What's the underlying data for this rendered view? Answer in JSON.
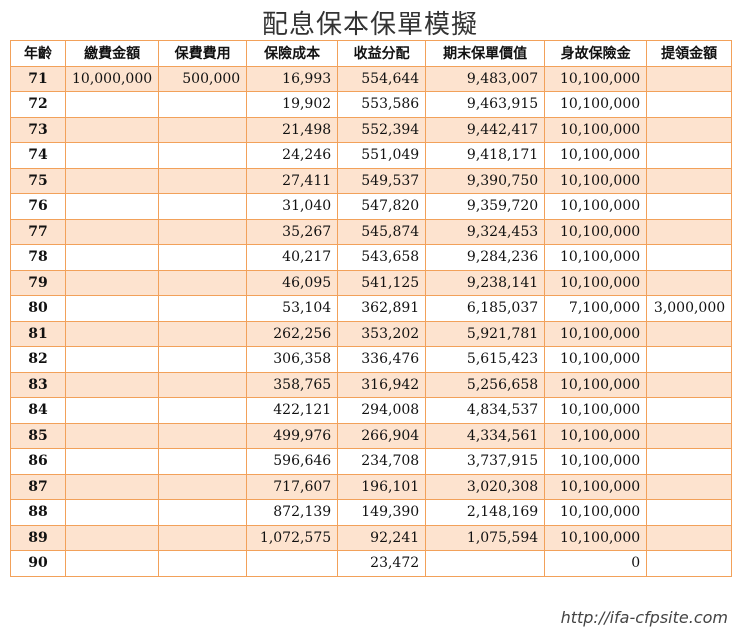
{
  "title": "配息保本保單模擬",
  "footer_url": "http://ifa-cfpsite.com",
  "table": {
    "columns": [
      "年齡",
      "繳費金額",
      "保費費用",
      "保險成本",
      "收益分配",
      "期末保單價值",
      "身故保險金",
      "提領金額"
    ],
    "rows": [
      [
        "71",
        "10,000,000",
        "500,000",
        "16,993",
        "554,644",
        "9,483,007",
        "10,100,000",
        ""
      ],
      [
        "72",
        "",
        "",
        "19,902",
        "553,586",
        "9,463,915",
        "10,100,000",
        ""
      ],
      [
        "73",
        "",
        "",
        "21,498",
        "552,394",
        "9,442,417",
        "10,100,000",
        ""
      ],
      [
        "74",
        "",
        "",
        "24,246",
        "551,049",
        "9,418,171",
        "10,100,000",
        ""
      ],
      [
        "75",
        "",
        "",
        "27,411",
        "549,537",
        "9,390,750",
        "10,100,000",
        ""
      ],
      [
        "76",
        "",
        "",
        "31,040",
        "547,820",
        "9,359,720",
        "10,100,000",
        ""
      ],
      [
        "77",
        "",
        "",
        "35,267",
        "545,874",
        "9,324,453",
        "10,100,000",
        ""
      ],
      [
        "78",
        "",
        "",
        "40,217",
        "543,658",
        "9,284,236",
        "10,100,000",
        ""
      ],
      [
        "79",
        "",
        "",
        "46,095",
        "541,125",
        "9,238,141",
        "10,100,000",
        ""
      ],
      [
        "80",
        "",
        "",
        "53,104",
        "362,891",
        "6,185,037",
        "7,100,000",
        "3,000,000"
      ],
      [
        "81",
        "",
        "",
        "262,256",
        "353,202",
        "5,921,781",
        "10,100,000",
        ""
      ],
      [
        "82",
        "",
        "",
        "306,358",
        "336,476",
        "5,615,423",
        "10,100,000",
        ""
      ],
      [
        "83",
        "",
        "",
        "358,765",
        "316,942",
        "5,256,658",
        "10,100,000",
        ""
      ],
      [
        "84",
        "",
        "",
        "422,121",
        "294,008",
        "4,834,537",
        "10,100,000",
        ""
      ],
      [
        "85",
        "",
        "",
        "499,976",
        "266,904",
        "4,334,561",
        "10,100,000",
        ""
      ],
      [
        "86",
        "",
        "",
        "596,646",
        "234,708",
        "3,737,915",
        "10,100,000",
        ""
      ],
      [
        "87",
        "",
        "",
        "717,607",
        "196,101",
        "3,020,308",
        "10,100,000",
        ""
      ],
      [
        "88",
        "",
        "",
        "872,139",
        "149,390",
        "2,148,169",
        "10,100,000",
        ""
      ],
      [
        "89",
        "",
        "",
        "1,072,575",
        "92,241",
        "1,075,594",
        "10,100,000",
        ""
      ],
      [
        "90",
        "",
        "",
        "",
        "23,472",
        "",
        "0",
        ""
      ]
    ]
  }
}
